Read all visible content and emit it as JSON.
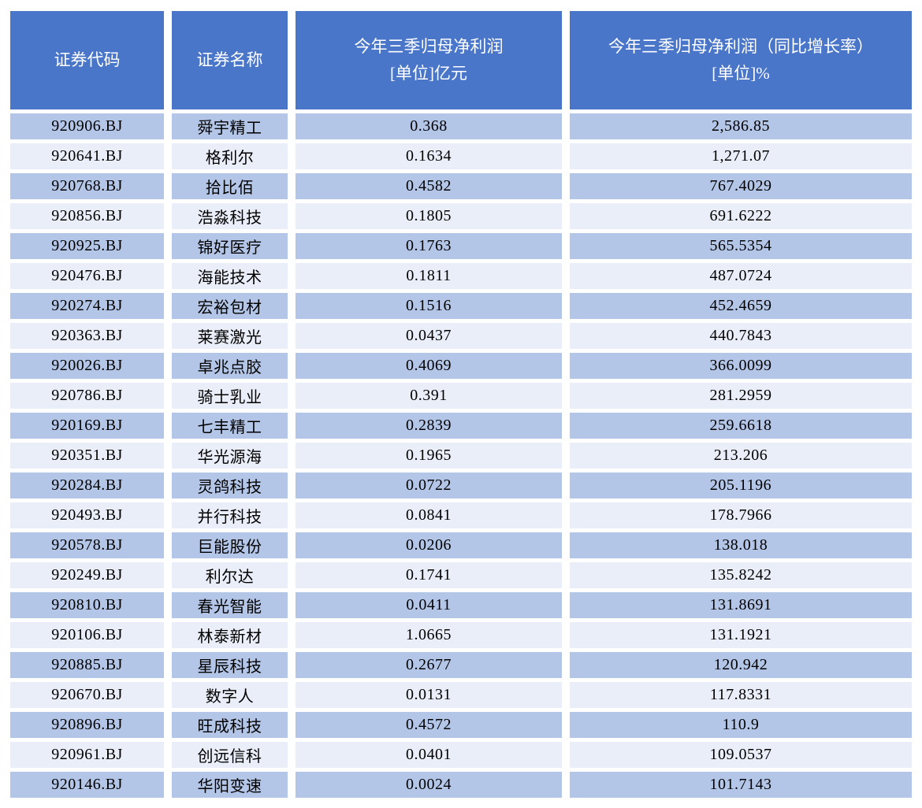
{
  "colors": {
    "page_bg": "#FFFFFF",
    "header_bg": "#4A76C9",
    "header_text": "#FFFFFF",
    "row_odd_bg": "#B4C6E8",
    "row_even_bg": "#EAEEF8",
    "body_text": "#000000"
  },
  "chart_data": {
    "type": "table",
    "columns": [
      {
        "id": "code",
        "label": "证券代码",
        "label2": ""
      },
      {
        "id": "name",
        "label": "证券名称",
        "label2": ""
      },
      {
        "id": "profit",
        "label": "今年三季归母净利润",
        "label2": "[单位]亿元"
      },
      {
        "id": "growth",
        "label": "今年三季归母净利润（同比增长率）",
        "label2": "[单位]%"
      }
    ],
    "rows": [
      {
        "code": "920906.BJ",
        "name": "舜宇精工",
        "profit": "0.368",
        "growth": "2,586.85"
      },
      {
        "code": "920641.BJ",
        "name": "格利尔",
        "profit": "0.1634",
        "growth": "1,271.07"
      },
      {
        "code": "920768.BJ",
        "name": "拾比佰",
        "profit": "0.4582",
        "growth": "767.4029"
      },
      {
        "code": "920856.BJ",
        "name": "浩淼科技",
        "profit": "0.1805",
        "growth": "691.6222"
      },
      {
        "code": "920925.BJ",
        "name": "锦好医疗",
        "profit": "0.1763",
        "growth": "565.5354"
      },
      {
        "code": "920476.BJ",
        "name": "海能技术",
        "profit": "0.1811",
        "growth": "487.0724"
      },
      {
        "code": "920274.BJ",
        "name": "宏裕包材",
        "profit": "0.1516",
        "growth": "452.4659"
      },
      {
        "code": "920363.BJ",
        "name": "莱赛激光",
        "profit": "0.0437",
        "growth": "440.7843"
      },
      {
        "code": "920026.BJ",
        "name": "卓兆点胶",
        "profit": "0.4069",
        "growth": "366.0099"
      },
      {
        "code": "920786.BJ",
        "name": "骑士乳业",
        "profit": "0.391",
        "growth": "281.2959"
      },
      {
        "code": "920169.BJ",
        "name": "七丰精工",
        "profit": "0.2839",
        "growth": "259.6618"
      },
      {
        "code": "920351.BJ",
        "name": "华光源海",
        "profit": "0.1965",
        "growth": "213.206"
      },
      {
        "code": "920284.BJ",
        "name": "灵鸽科技",
        "profit": "0.0722",
        "growth": "205.1196"
      },
      {
        "code": "920493.BJ",
        "name": "并行科技",
        "profit": "0.0841",
        "growth": "178.7966"
      },
      {
        "code": "920578.BJ",
        "name": "巨能股份",
        "profit": "0.0206",
        "growth": "138.018"
      },
      {
        "code": "920249.BJ",
        "name": "利尔达",
        "profit": "0.1741",
        "growth": "135.8242"
      },
      {
        "code": "920810.BJ",
        "name": "春光智能",
        "profit": "0.0411",
        "growth": "131.8691"
      },
      {
        "code": "920106.BJ",
        "name": "林泰新材",
        "profit": "1.0665",
        "growth": "131.1921"
      },
      {
        "code": "920885.BJ",
        "name": "星辰科技",
        "profit": "0.2677",
        "growth": "120.942"
      },
      {
        "code": "920670.BJ",
        "name": "数字人",
        "profit": "0.0131",
        "growth": "117.8331"
      },
      {
        "code": "920896.BJ",
        "name": "旺成科技",
        "profit": "0.4572",
        "growth": "110.9"
      },
      {
        "code": "920961.BJ",
        "name": "创远信科",
        "profit": "0.0401",
        "growth": "109.0537"
      },
      {
        "code": "920146.BJ",
        "name": "华阳变速",
        "profit": "0.0024",
        "growth": "101.7143"
      }
    ]
  }
}
